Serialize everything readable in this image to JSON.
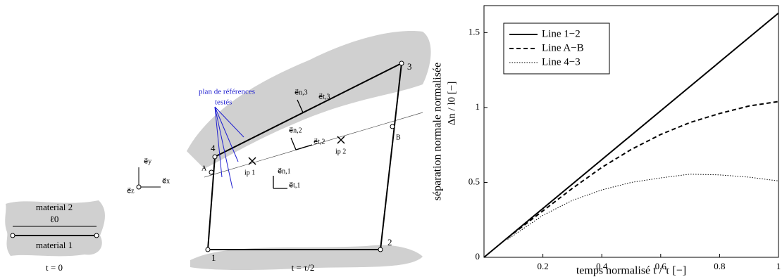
{
  "diagram": {
    "left": {
      "top_material": "material 2",
      "length": "ℓ0",
      "bottom_material": "material 1",
      "time": "t = 0"
    },
    "basis": {
      "ey": "e⃗y",
      "ez": "e⃗z",
      "ex": "e⃗x"
    },
    "main": {
      "annotation": "plan de références",
      "annotation2": "testés",
      "nodes": [
        "1",
        "2",
        "3",
        "4",
        "A",
        "B"
      ],
      "points": [
        "ip 1",
        "ip 2"
      ],
      "vectors": [
        "e⃗n,3",
        "e⃗t,3",
        "e⃗n,2",
        "e⃗t,2",
        "e⃗n,1",
        "e⃗t,1"
      ],
      "time": "t = τ/2"
    }
  },
  "chart_data": {
    "type": "line",
    "xlabel": "temps normalisé t / τ [−]",
    "ylabel": "séparation normale normalisée",
    "ylabel2": "Δn / l0 [−]",
    "xlim": [
      0,
      1
    ],
    "ylim": [
      0,
      1.68
    ],
    "xticks": [
      0.2,
      0.4,
      0.6,
      0.8,
      1
    ],
    "yticks": [
      0,
      0.5,
      1,
      1.5
    ],
    "legend": "upper left",
    "series": [
      {
        "name": "Line 1−2",
        "color": "#000000",
        "dash": "solid",
        "x": [
          0,
          1
        ],
        "values": [
          0,
          1.63
        ]
      },
      {
        "name": "Line A−B",
        "color": "#000000",
        "dash": "dashed",
        "x": [
          0.08,
          0.2,
          0.3,
          0.4,
          0.5,
          0.6,
          0.7,
          0.8,
          0.9,
          1
        ],
        "values": [
          0.13,
          0.31,
          0.46,
          0.6,
          0.72,
          0.82,
          0.9,
          0.96,
          1.01,
          1.04
        ]
      },
      {
        "name": "Line 4−3",
        "color": "#000000",
        "dash": "dotted",
        "x": [
          0.08,
          0.2,
          0.3,
          0.4,
          0.5,
          0.6,
          0.7,
          0.8,
          0.9,
          1
        ],
        "values": [
          0.12,
          0.28,
          0.38,
          0.45,
          0.5,
          0.53,
          0.555,
          0.55,
          0.535,
          0.51
        ]
      }
    ]
  }
}
